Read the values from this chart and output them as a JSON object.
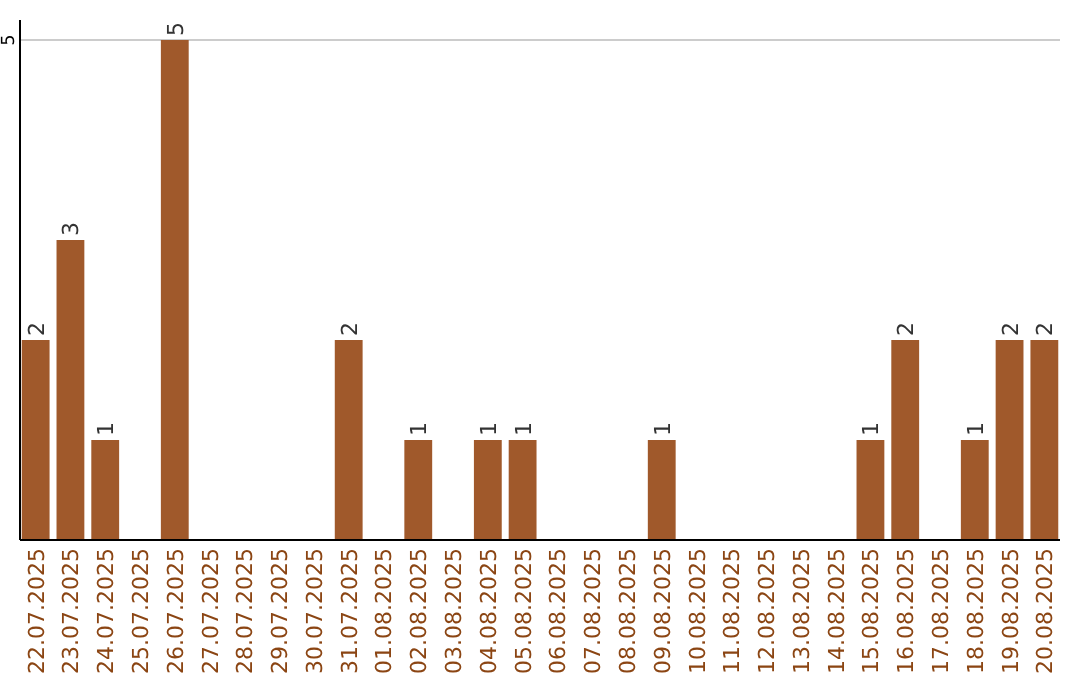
{
  "chart_data": {
    "type": "bar",
    "categories": [
      "22.07.2025",
      "23.07.2025",
      "24.07.2025",
      "25.07.2025",
      "26.07.2025",
      "27.07.2025",
      "28.07.2025",
      "29.07.2025",
      "30.07.2025",
      "31.07.2025",
      "01.08.2025",
      "02.08.2025",
      "03.08.2025",
      "04.08.2025",
      "05.08.2025",
      "06.08.2025",
      "07.08.2025",
      "08.08.2025",
      "09.08.2025",
      "10.08.2025",
      "11.08.2025",
      "12.08.2025",
      "13.08.2025",
      "14.08.2025",
      "15.08.2025",
      "16.08.2025",
      "17.08.2025",
      "18.08.2025",
      "19.08.2025",
      "20.08.2025"
    ],
    "values": [
      2,
      3,
      1,
      0,
      5,
      0,
      0,
      0,
      0,
      2,
      0,
      1,
      0,
      1,
      1,
      0,
      0,
      0,
      1,
      0,
      0,
      0,
      0,
      0,
      1,
      2,
      0,
      1,
      2,
      2
    ],
    "value_labels": [
      "2",
      "3",
      "1",
      null,
      "5",
      null,
      null,
      null,
      null,
      "2",
      null,
      "1",
      null,
      "1",
      "1",
      null,
      null,
      null,
      "1",
      null,
      null,
      null,
      null,
      null,
      "1",
      "2",
      null,
      "1",
      "2",
      "2"
    ],
    "color": "#a0592b",
    "ylim": [
      0,
      5.2
    ],
    "yticks": [
      5
    ],
    "grid": "y"
  }
}
